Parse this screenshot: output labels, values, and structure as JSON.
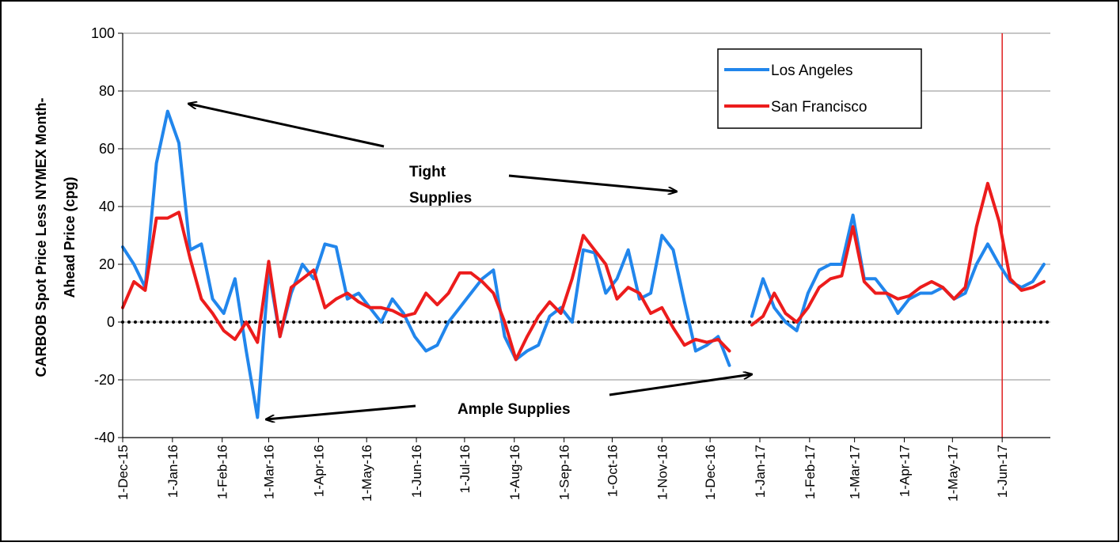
{
  "chart_data": {
    "type": "line",
    "ylabel": [
      "CARBOB Spot Price Less NYMEX Month-",
      "Ahead Price (cpg)"
    ],
    "x": [
      "2015-12-01",
      "2015-12-08",
      "2015-12-15",
      "2015-12-22",
      "2015-12-29",
      "2016-01-05",
      "2016-01-12",
      "2016-01-19",
      "2016-01-26",
      "2016-02-02",
      "2016-02-09",
      "2016-02-16",
      "2016-02-23",
      "2016-03-01",
      "2016-03-08",
      "2016-03-15",
      "2016-03-22",
      "2016-03-29",
      "2016-04-05",
      "2016-04-12",
      "2016-04-19",
      "2016-04-26",
      "2016-05-03",
      "2016-05-10",
      "2016-05-17",
      "2016-05-24",
      "2016-05-31",
      "2016-06-07",
      "2016-06-14",
      "2016-06-21",
      "2016-06-28",
      "2016-07-05",
      "2016-07-12",
      "2016-07-19",
      "2016-07-26",
      "2016-08-02",
      "2016-08-09",
      "2016-08-16",
      "2016-08-23",
      "2016-08-30",
      "2016-09-06",
      "2016-09-13",
      "2016-09-20",
      "2016-09-27",
      "2016-10-04",
      "2016-10-11",
      "2016-10-18",
      "2016-10-25",
      "2016-11-01",
      "2016-11-08",
      "2016-11-15",
      "2016-11-22",
      "2016-11-29",
      "2016-12-06",
      "2016-12-13",
      "2016-12-20",
      "2016-12-27",
      "2017-01-03",
      "2017-01-10",
      "2017-01-17",
      "2017-01-24",
      "2017-01-31",
      "2017-02-07",
      "2017-02-14",
      "2017-02-21",
      "2017-02-28",
      "2017-03-07",
      "2017-03-14",
      "2017-03-21",
      "2017-03-28",
      "2017-04-04",
      "2017-04-11",
      "2017-04-18",
      "2017-04-25",
      "2017-05-02",
      "2017-05-09",
      "2017-05-16",
      "2017-05-23",
      "2017-05-30",
      "2017-06-06",
      "2017-06-13",
      "2017-06-20",
      "2017-06-27"
    ],
    "series": [
      {
        "name": "Los Angeles",
        "color": "#2186ec",
        "values": [
          26,
          20,
          12,
          55,
          73,
          62,
          25,
          27,
          8,
          3,
          15,
          -10,
          -33,
          18,
          -5,
          10,
          20,
          15,
          27,
          26,
          8,
          10,
          5,
          0,
          8,
          3,
          -5,
          -10,
          -8,
          0,
          5,
          10,
          15,
          18,
          -5,
          -13,
          -10,
          -8,
          2,
          5,
          0,
          25,
          24,
          10,
          15,
          25,
          8,
          10,
          30,
          25,
          7,
          -10,
          -8,
          -5,
          -15,
          null,
          2,
          15,
          5,
          0,
          -3,
          10,
          18,
          20,
          20,
          37,
          15,
          15,
          10,
          3,
          8,
          10,
          10,
          12,
          8,
          10,
          20,
          27,
          20,
          14,
          12,
          14,
          20
        ]
      },
      {
        "name": "San Francisco",
        "color": "#ec1c1c",
        "values": [
          5,
          14,
          11,
          36,
          36,
          38,
          22,
          8,
          3,
          -3,
          -6,
          0,
          -7,
          21,
          -5,
          12,
          15,
          18,
          5,
          8,
          10,
          7,
          5,
          5,
          4,
          2,
          3,
          10,
          6,
          10,
          17,
          17,
          14,
          10,
          0,
          -13,
          -5,
          2,
          7,
          3,
          15,
          30,
          25,
          20,
          8,
          12,
          10,
          3,
          5,
          -2,
          -8,
          -6,
          -7,
          -6,
          -10,
          null,
          -1,
          2,
          10,
          3,
          0,
          5,
          12,
          15,
          16,
          33,
          14,
          10,
          10,
          8,
          9,
          12,
          14,
          12,
          8,
          12,
          33,
          48,
          35,
          15,
          11,
          12,
          14
        ]
      }
    ],
    "xlim": [
      "2015-12-01",
      "2017-07-01"
    ],
    "xticks": [
      {
        "value": "2015-12-01",
        "label": "1-Dec-15"
      },
      {
        "value": "2016-01-01",
        "label": "1-Jan-16"
      },
      {
        "value": "2016-02-01",
        "label": "1-Feb-16"
      },
      {
        "value": "2016-03-01",
        "label": "1-Mar-16"
      },
      {
        "value": "2016-04-01",
        "label": "1-Apr-16"
      },
      {
        "value": "2016-05-01",
        "label": "1-May-16"
      },
      {
        "value": "2016-06-01",
        "label": "1-Jun-16"
      },
      {
        "value": "2016-07-01",
        "label": "1-Jul-16"
      },
      {
        "value": "2016-08-01",
        "label": "1-Aug-16"
      },
      {
        "value": "2016-09-01",
        "label": "1-Sep-16"
      },
      {
        "value": "2016-10-01",
        "label": "1-Oct-16"
      },
      {
        "value": "2016-11-01",
        "label": "1-Nov-16"
      },
      {
        "value": "2016-12-01",
        "label": "1-Dec-16"
      },
      {
        "value": "2017-01-01",
        "label": "1-Jan-17"
      },
      {
        "value": "2017-02-01",
        "label": "1-Feb-17"
      },
      {
        "value": "2017-03-01",
        "label": "1-Mar-17"
      },
      {
        "value": "2017-04-01",
        "label": "1-Apr-17"
      },
      {
        "value": "2017-05-01",
        "label": "1-May-17"
      },
      {
        "value": "2017-06-01",
        "label": "1-Jun-17"
      }
    ],
    "ylim": [
      -40,
      100
    ],
    "yticks": [
      -40,
      -20,
      0,
      20,
      40,
      60,
      80,
      100
    ],
    "grid": true,
    "legend": "upper-right",
    "reference_line": {
      "y": 0,
      "style": "dotted",
      "color": "#000000"
    },
    "vline": {
      "x": "2017-06-01",
      "color": "#e02020"
    },
    "annotations": {
      "tight": [
        "Tight",
        "Supplies"
      ],
      "ample": "Ample Supplies"
    }
  }
}
